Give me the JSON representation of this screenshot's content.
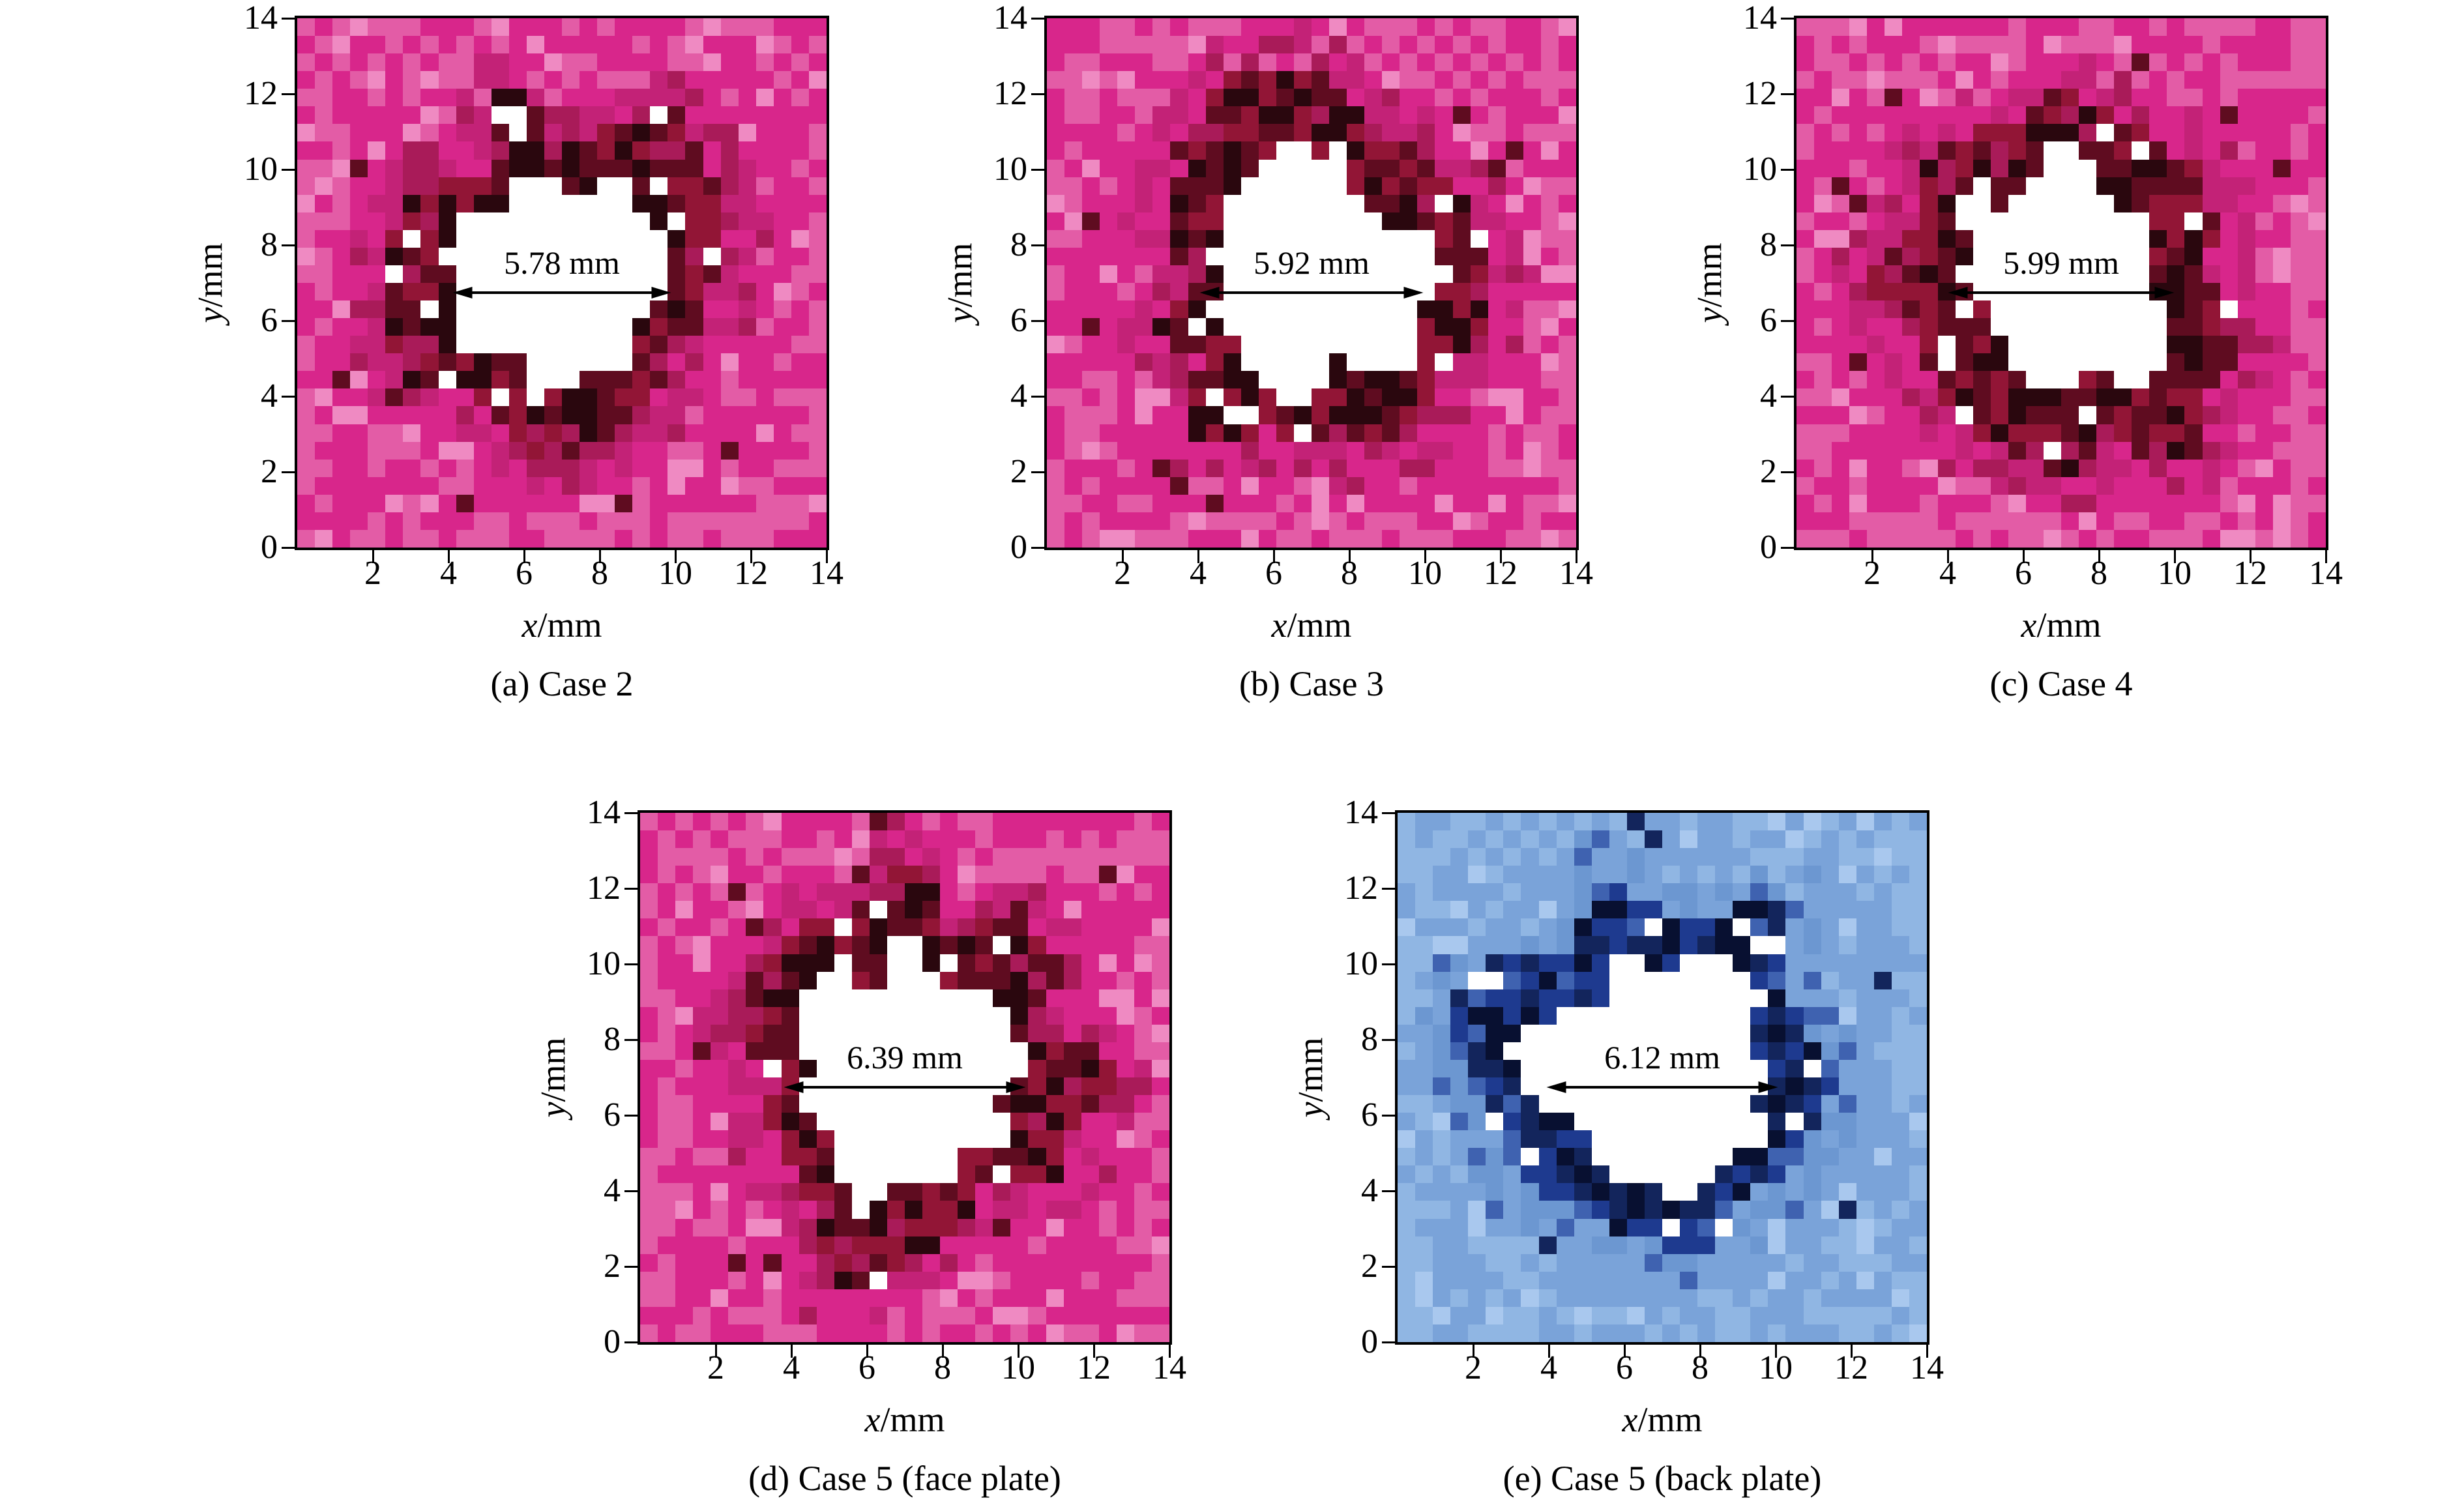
{
  "figure": {
    "background": "#ffffff",
    "panel_count": 5
  },
  "palettes": {
    "magenta": {
      "base": "#d8268b",
      "base2": "#c32277",
      "light1": "#e35ca6",
      "light2": "#ef8ac2",
      "trans": "#a91b59",
      "ring1": "#921536",
      "ring2": "#5f0c20",
      "ring3": "#2a070e",
      "hole": "#ffffff"
    },
    "blue": {
      "base": "#7aa3d9",
      "base2": "#6c97d1",
      "light1": "#90b6e3",
      "light2": "#a9c8ee",
      "trans": "#3f62b0",
      "ring1": "#1e3a8f",
      "ring2": "#13255c",
      "ring3": "#081031",
      "hole": "#ffffff"
    }
  },
  "chart_data": [
    {
      "type": "heatmap",
      "panel": "a",
      "title": "(a) Case 2",
      "xlabel": "x/mm",
      "ylabel": "y/mm",
      "xlabel_var": "x",
      "xlabel_rest": "/mm",
      "ylabel_var": "y",
      "ylabel_rest": "/mm",
      "xlim": [
        0,
        14
      ],
      "ylim": [
        0,
        14
      ],
      "x_ticks": [
        2,
        4,
        6,
        8,
        10,
        12,
        14
      ],
      "y_ticks": [
        0,
        2,
        4,
        6,
        8,
        10,
        12,
        14
      ],
      "hole_diameter_mm": 5.78,
      "annotation": "5.78 mm",
      "hole_center_mm": [
        7,
        7.1
      ],
      "palette": "magenta",
      "seed": 11,
      "legend": "none",
      "description": "Pixelated simulated damage field: magenta intact plate, dark-red damage ring, white central perforation of measured diameter"
    },
    {
      "type": "heatmap",
      "panel": "b",
      "title": "(b) Case 3",
      "xlabel": "x/mm",
      "ylabel": "y/mm",
      "xlabel_var": "x",
      "xlabel_rest": "/mm",
      "ylabel_var": "y",
      "ylabel_rest": "/mm",
      "xlim": [
        0,
        14
      ],
      "ylim": [
        0,
        14
      ],
      "x_ticks": [
        2,
        4,
        6,
        8,
        10,
        12,
        14
      ],
      "y_ticks": [
        0,
        2,
        4,
        6,
        8,
        10,
        12,
        14
      ],
      "hole_diameter_mm": 5.92,
      "annotation": "5.92 mm",
      "hole_center_mm": [
        7,
        7.1
      ],
      "palette": "magenta",
      "seed": 23,
      "legend": "none",
      "description": "Pixelated simulated damage field: magenta intact plate, dark-red damage ring, white central perforation of measured diameter"
    },
    {
      "type": "heatmap",
      "panel": "c",
      "title": "(c) Case 4",
      "xlabel": "x/mm",
      "ylabel": "y/mm",
      "xlabel_var": "x",
      "xlabel_rest": "/mm",
      "ylabel_var": "y",
      "ylabel_rest": "/mm",
      "xlim": [
        0,
        14
      ],
      "ylim": [
        0,
        14
      ],
      "x_ticks": [
        2,
        4,
        6,
        8,
        10,
        12,
        14
      ],
      "y_ticks": [
        0,
        2,
        4,
        6,
        8,
        10,
        12,
        14
      ],
      "hole_diameter_mm": 5.99,
      "annotation": "5.99 mm",
      "hole_center_mm": [
        7,
        7.1
      ],
      "palette": "magenta",
      "seed": 37,
      "legend": "none",
      "description": "Pixelated simulated damage field: magenta intact plate, dark-red damage ring, white central perforation of measured diameter"
    },
    {
      "type": "heatmap",
      "panel": "d",
      "title": "(d) Case 5 (face plate)",
      "xlabel": "x/mm",
      "ylabel": "y/mm",
      "xlabel_var": "x",
      "xlabel_rest": "/mm",
      "ylabel_var": "y",
      "ylabel_rest": "/mm",
      "xlim": [
        0,
        14
      ],
      "ylim": [
        0,
        14
      ],
      "x_ticks": [
        2,
        4,
        6,
        8,
        10,
        12,
        14
      ],
      "y_ticks": [
        0,
        2,
        4,
        6,
        8,
        10,
        12,
        14
      ],
      "hole_diameter_mm": 6.39,
      "annotation": "6.39 mm",
      "hole_center_mm": [
        7,
        7.1
      ],
      "palette": "magenta",
      "seed": 51,
      "legend": "none",
      "description": "Pixelated simulated damage field of face plate: magenta intact plate, dark-red damage ring, white central perforation of measured diameter"
    },
    {
      "type": "heatmap",
      "panel": "e",
      "title": "(e) Case 5 (back plate)",
      "xlabel": "x/mm",
      "ylabel": "y/mm",
      "xlabel_var": "x",
      "xlabel_rest": "/mm",
      "ylabel_var": "y",
      "ylabel_rest": "/mm",
      "xlim": [
        0,
        14
      ],
      "ylim": [
        0,
        14
      ],
      "x_ticks": [
        2,
        4,
        6,
        8,
        10,
        12,
        14
      ],
      "y_ticks": [
        0,
        2,
        4,
        6,
        8,
        10,
        12,
        14
      ],
      "hole_diameter_mm": 6.12,
      "annotation": "6.12 mm",
      "hole_center_mm": [
        7,
        7.1
      ],
      "palette": "blue",
      "seed": 67,
      "legend": "none",
      "description": "Pixelated simulated damage field of back plate: blue intact plate, dark-navy damage ring, white central perforation of measured diameter"
    }
  ]
}
